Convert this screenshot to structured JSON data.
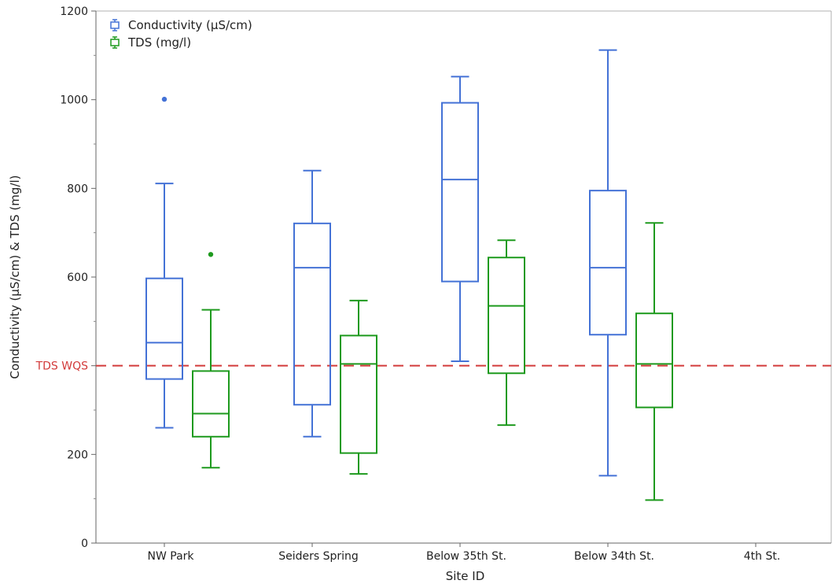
{
  "chart_data": {
    "type": "boxplot",
    "xlabel": "Site ID",
    "ylabel": "Conductivity (µS/cm) & TDS (mg/l)",
    "ylim": [
      0,
      1200
    ],
    "yticks": [
      0,
      200,
      400,
      600,
      800,
      1000,
      1200
    ],
    "ytick_labels": [
      "0",
      "200",
      "",
      "600",
      "800",
      "1000",
      "1200"
    ],
    "grid": false,
    "legend_position": "top-left",
    "categories": [
      "NW Park",
      "Seiders Spring",
      "Below 35th St.",
      "Below 34th St.",
      "4th St."
    ],
    "series": [
      {
        "name": "Conductivity (µS/cm)",
        "color": "#4472d6",
        "boxes": [
          {
            "category": "NW Park",
            "min": 260,
            "q1": 370,
            "median": 452,
            "q3": 597,
            "max": 811,
            "outliers": [
              1001
            ]
          },
          {
            "category": "Seiders Spring",
            "min": 240,
            "q1": 312,
            "median": 621,
            "q3": 721,
            "max": 840,
            "outliers": []
          },
          {
            "category": "Below 35th St.",
            "min": 410,
            "q1": 590,
            "median": 820,
            "q3": 993,
            "max": 1052,
            "outliers": []
          },
          {
            "category": "Below 34th St.",
            "min": 152,
            "q1": 470,
            "median": 621,
            "q3": 795,
            "max": 1112,
            "outliers": []
          },
          null
        ]
      },
      {
        "name": "TDS (mg/l)",
        "color": "#1e9a1e",
        "boxes": [
          {
            "category": "NW Park",
            "min": 170,
            "q1": 240,
            "median": 292,
            "q3": 388,
            "max": 526,
            "outliers": [
              651
            ]
          },
          {
            "category": "Seiders Spring",
            "min": 156,
            "q1": 203,
            "median": 404,
            "q3": 468,
            "max": 547,
            "outliers": []
          },
          {
            "category": "Below 35th St.",
            "min": 266,
            "q1": 383,
            "median": 535,
            "q3": 644,
            "max": 683,
            "outliers": []
          },
          {
            "category": "Below 34th St.",
            "min": 97,
            "q1": 306,
            "median": 404,
            "q3": 518,
            "max": 722,
            "outliers": []
          },
          null
        ]
      }
    ],
    "reference_lines": [
      {
        "label": "TDS WQS",
        "value": 400,
        "color": "#d23a3a",
        "style": "dashed"
      }
    ]
  }
}
